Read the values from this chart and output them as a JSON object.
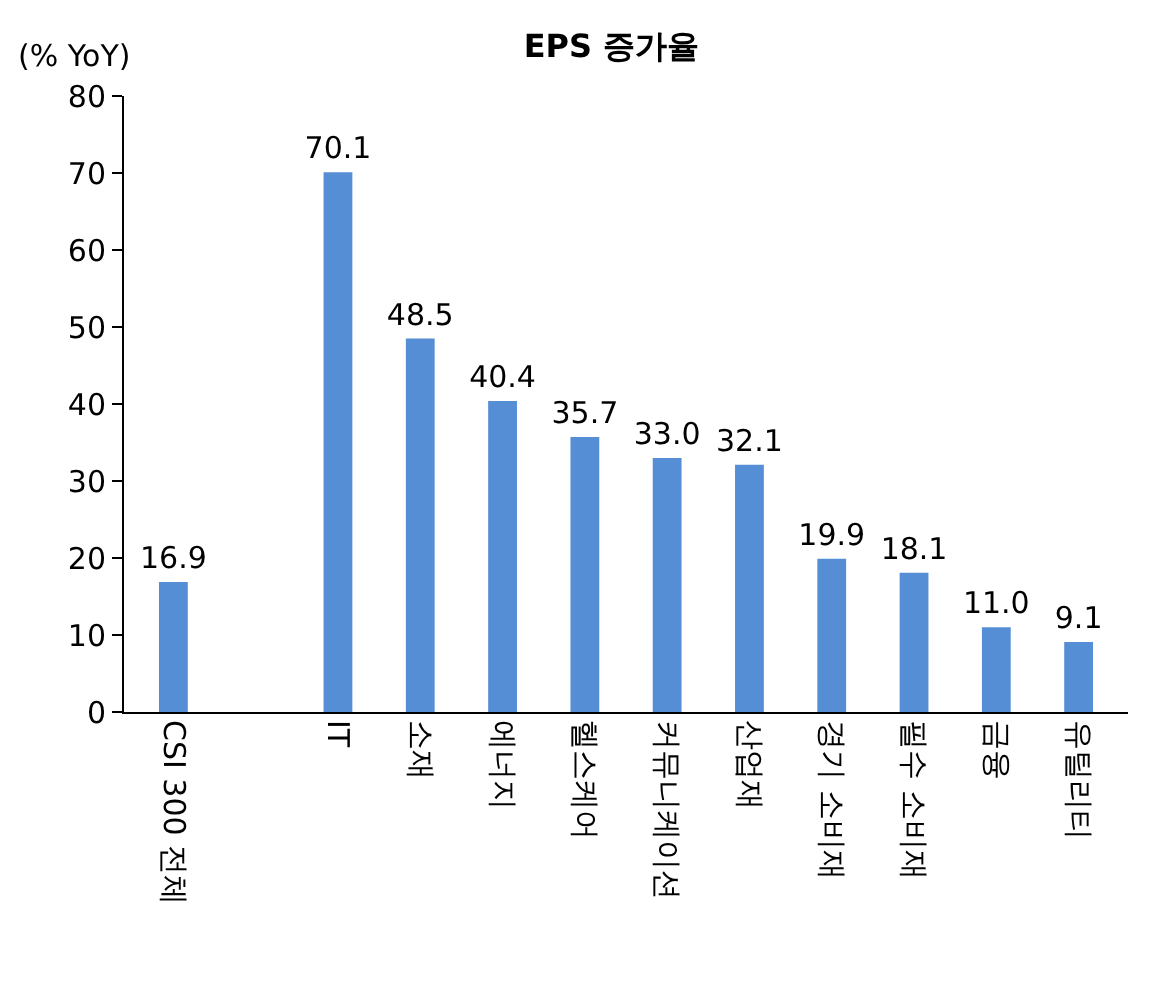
{
  "chart_data": {
    "type": "bar",
    "title": "EPS 증가율",
    "ylabel": "(% YoY)",
    "categories": [
      "CSI 300 전체",
      null,
      "IT",
      "소재",
      "에너지",
      "헬스케어",
      "커뮤니케이션",
      "산업재",
      "경기 소비재",
      "필수 소비재",
      "금융",
      "유틸리티"
    ],
    "values": [
      16.9,
      null,
      70.1,
      48.5,
      40.4,
      35.7,
      33.0,
      32.1,
      19.9,
      18.1,
      11.0,
      9.1
    ],
    "value_labels": [
      "16.9",
      null,
      "70.1",
      "48.5",
      "40.4",
      "35.7",
      "33.0",
      "32.1",
      "19.9",
      "18.1",
      "11.0",
      "9.1"
    ],
    "color": "#558ed5",
    "ylim": [
      0,
      80
    ],
    "yticks": [
      0,
      10,
      20,
      30,
      40,
      50,
      60,
      70,
      80
    ],
    "grid": false
  }
}
